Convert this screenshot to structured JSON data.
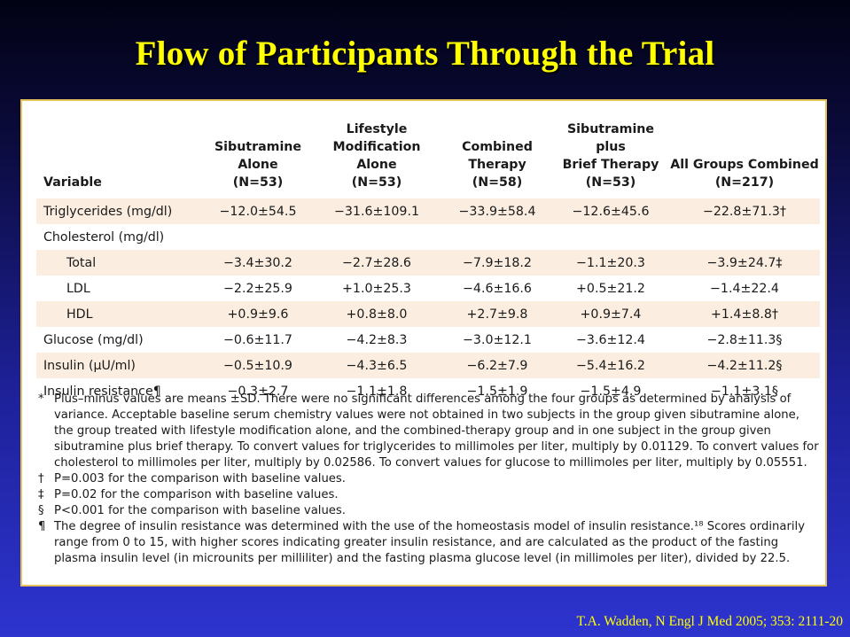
{
  "title": "Flow of Participants Through the Trial",
  "table": {
    "columns": [
      "Variable",
      "Sibutramine\nAlone\n(N=53)",
      "Lifestyle\nModification Alone\n(N=53)",
      "Combined\nTherapy\n(N=58)",
      "Sibutramine plus\nBrief Therapy\n(N=53)",
      "All Groups Combined\n(N=217)"
    ],
    "rows": [
      {
        "label": "Triglycerides (mg/dl)",
        "cells": [
          "−12.0±54.5",
          "−31.6±109.1",
          "−33.9±58.4",
          "−12.6±45.6",
          "−22.8±71.3†"
        ]
      },
      {
        "label": "Cholesterol (mg/dl)",
        "cells": [
          "",
          "",
          "",
          "",
          ""
        ]
      },
      {
        "label": "Total",
        "cells": [
          "−3.4±30.2",
          "−2.7±28.6",
          "−7.9±18.2",
          "−1.1±20.3",
          "−3.9±24.7‡"
        ]
      },
      {
        "label": "LDL",
        "cells": [
          "−2.2±25.9",
          "+1.0±25.3",
          "−4.6±16.6",
          "+0.5±21.2",
          "−1.4±22.4"
        ]
      },
      {
        "label": "HDL",
        "cells": [
          "+0.9±9.6",
          "+0.8±8.0",
          "+2.7±9.8",
          "+0.9±7.4",
          "+1.4±8.8†"
        ]
      },
      {
        "label": "Glucose (mg/dl)",
        "cells": [
          "−0.6±11.7",
          "−4.2±8.3",
          "−3.0±12.1",
          "−3.6±12.4",
          "−2.8±11.3§"
        ]
      },
      {
        "label": "Insulin (μU/ml)",
        "cells": [
          "−0.5±10.9",
          "−4.3±6.5",
          "−6.2±7.9",
          "−5.4±16.2",
          "−4.2±11.2§"
        ]
      },
      {
        "label": "Insulin resistance¶",
        "cells": [
          "−0.3±2.7",
          "−1.1±1.8",
          "−1.5±1.9",
          "−1.5±4.9",
          "−1.1±3.1§"
        ]
      }
    ]
  },
  "footnotes": [
    {
      "symbol": "*",
      "text": "Plus–minus values are means ±SD. There were no significant differences among the four groups as determined by analysis of variance. Acceptable baseline serum chemistry values were not obtained in two subjects in the group given sibutramine alone, the group treated with lifestyle modification alone, and the combined-therapy group and in one subject in the group given sibutramine plus brief therapy. To convert values for triglycerides to millimoles per liter, multiply by 0.01129. To convert values for cholesterol to millimoles per liter, multiply by 0.02586. To convert values for glucose to millimoles per liter, multiply by 0.05551."
    },
    {
      "symbol": "†",
      "text": "P=0.003 for the comparison with baseline values."
    },
    {
      "symbol": "‡",
      "text": "P=0.02 for the comparison with baseline values."
    },
    {
      "symbol": "§",
      "text": "P<0.001 for the comparison with baseline values."
    },
    {
      "symbol": "¶",
      "text": "The degree of insulin resistance was determined with the use of the homeostasis model of insulin resistance.¹⁸ Scores ordinarily range from 0 to 15, with higher scores indicating greater insulin resistance, and are calculated as the product of the fasting plasma insulin level (in microunits per milliliter) and the fasting plasma glucose level (in millimoles per liter), divided by 22.5."
    }
  ],
  "citation": "T.A. Wadden, N Engl J Med 2005; 353: 2111-20"
}
